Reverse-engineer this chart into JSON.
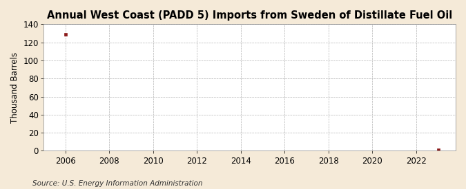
{
  "title": "Annual West Coast (PADD 5) Imports from Sweden of Distillate Fuel Oil",
  "ylabel": "Thousand Barrels",
  "source": "Source: U.S. Energy Information Administration",
  "background_color": "#f5ead8",
  "plot_bg_color": "#ffffff",
  "data_points": [
    {
      "year": 2006,
      "value": 129
    },
    {
      "year": 2023,
      "value": 1
    }
  ],
  "xlim": [
    2005.0,
    2023.8
  ],
  "ylim": [
    0,
    140
  ],
  "yticks": [
    0,
    20,
    40,
    60,
    80,
    100,
    120,
    140
  ],
  "xticks": [
    2006,
    2008,
    2010,
    2012,
    2014,
    2016,
    2018,
    2020,
    2022
  ],
  "marker_color": "#8b1a1a",
  "grid_color": "#aaaaaa",
  "title_fontsize": 10.5,
  "axis_fontsize": 8.5,
  "source_fontsize": 7.5
}
